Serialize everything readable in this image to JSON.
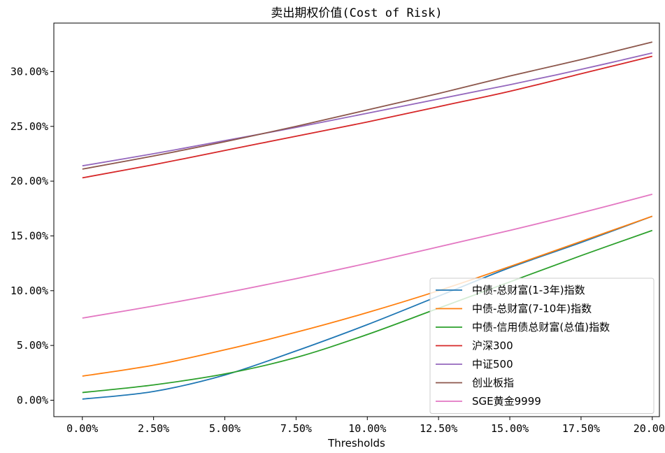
{
  "chart_data": {
    "type": "line",
    "title": "卖出期权价值(Cost of Risk)",
    "xlabel": "Thresholds",
    "ylabel": "",
    "xlim": [
      -0.01,
      0.2025
    ],
    "ylim": [
      -0.015,
      0.3443
    ],
    "x_ticks": [
      0,
      0.025,
      0.05,
      0.075,
      0.1,
      0.125,
      0.15,
      0.175,
      0.2
    ],
    "x_tick_labels": [
      "0.00%",
      "2.50%",
      "5.00%",
      "7.50%",
      "10.00%",
      "12.50%",
      "15.00%",
      "17.50%",
      "20.00%"
    ],
    "y_ticks": [
      0,
      0.05,
      0.1,
      0.15,
      0.2,
      0.25,
      0.3
    ],
    "y_tick_labels": [
      "0.00%",
      "5.00%",
      "10.00%",
      "15.00%",
      "20.00%",
      "25.00%",
      "30.00%"
    ],
    "grid": false,
    "legend_position": "lower-right",
    "x": [
      0,
      0.025,
      0.05,
      0.075,
      0.1,
      0.125,
      0.15,
      0.175,
      0.2
    ],
    "series": [
      {
        "name": "中债-总财富(1-3年)指数",
        "color": "#1f77b4",
        "values": [
          0.001,
          0.008,
          0.023,
          0.045,
          0.069,
          0.095,
          0.121,
          0.144,
          0.168
        ]
      },
      {
        "name": "中债-总财富(7-10年)指数",
        "color": "#ff7f0e",
        "values": [
          0.022,
          0.032,
          0.046,
          0.062,
          0.08,
          0.1,
          0.122,
          0.145,
          0.168
        ]
      },
      {
        "name": "中债-信用债总财富(总值)指数",
        "color": "#2ca02c",
        "values": [
          0.007,
          0.014,
          0.024,
          0.039,
          0.06,
          0.084,
          0.108,
          0.132,
          0.155
        ]
      },
      {
        "name": "沪深300",
        "color": "#d62728",
        "values": [
          0.203,
          0.215,
          0.228,
          0.241,
          0.254,
          0.268,
          0.282,
          0.298,
          0.314
        ]
      },
      {
        "name": "中证500",
        "color": "#9467bd",
        "values": [
          0.214,
          0.225,
          0.237,
          0.249,
          0.262,
          0.275,
          0.288,
          0.302,
          0.317
        ]
      },
      {
        "name": "创业板指",
        "color": "#8c564b",
        "values": [
          0.211,
          0.223,
          0.236,
          0.25,
          0.265,
          0.28,
          0.296,
          0.311,
          0.327
        ]
      },
      {
        "name": "SGE黄金9999",
        "color": "#e377c2",
        "values": [
          0.075,
          0.086,
          0.098,
          0.111,
          0.125,
          0.14,
          0.155,
          0.171,
          0.188
        ]
      }
    ]
  }
}
